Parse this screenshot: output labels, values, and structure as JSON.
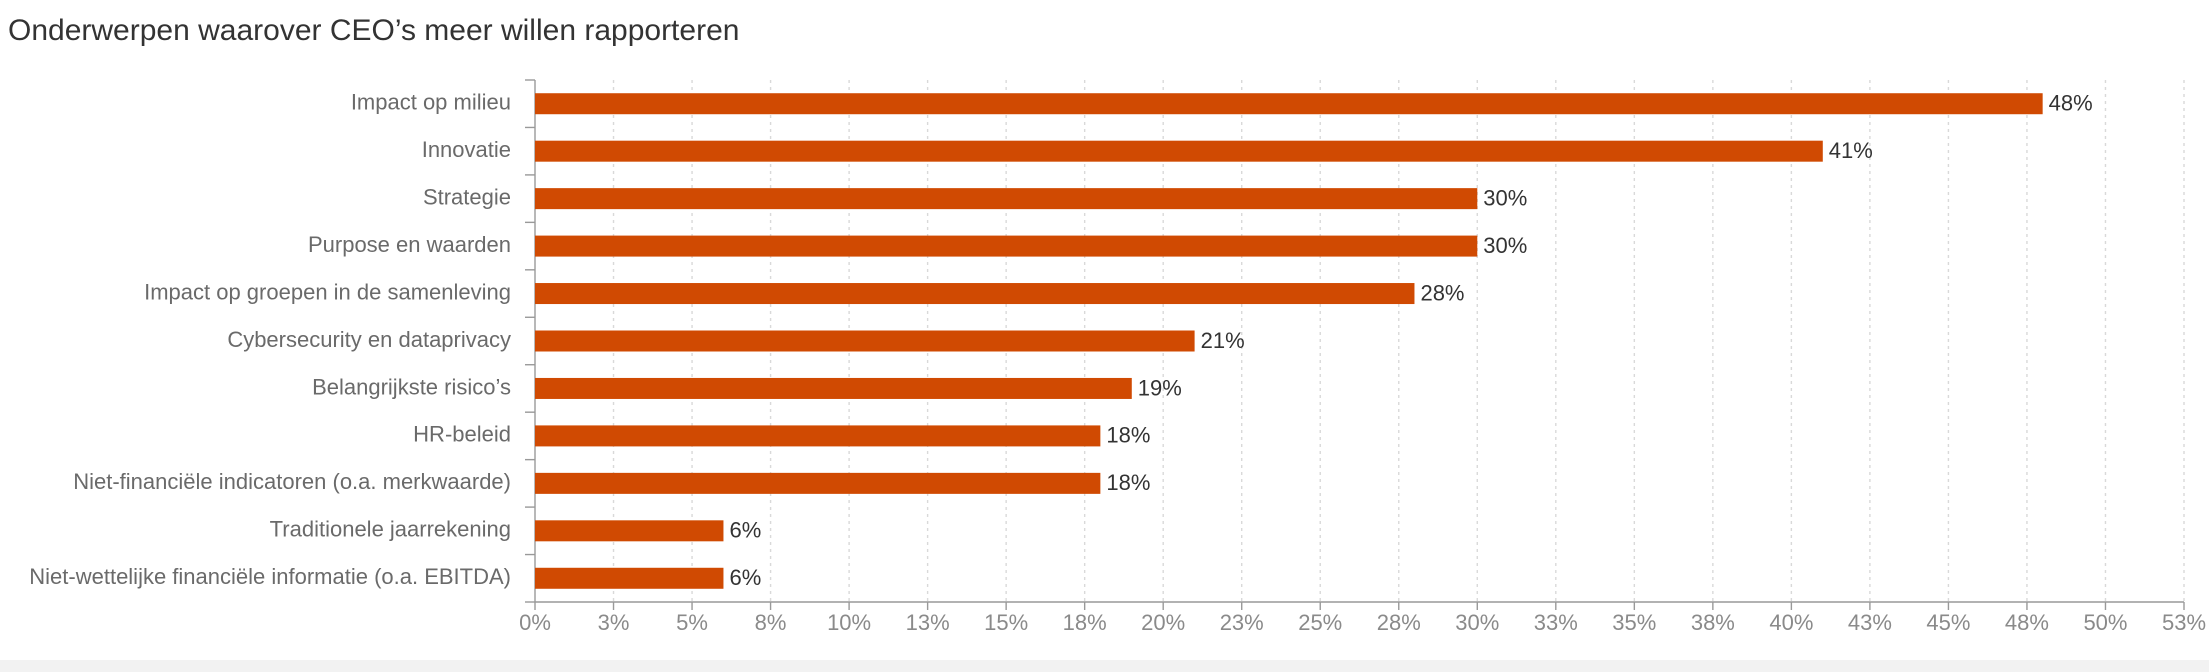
{
  "chart_data": {
    "type": "bar",
    "orientation": "horizontal",
    "title": "Onderwerpen waarover CEO’s meer willen rapporteren",
    "categories": [
      "Impact op milieu",
      "Innovatie",
      "Strategie",
      "Purpose en waarden",
      "Impact op groepen in de samenleving",
      "Cybersecurity en dataprivacy",
      "Belangrijkste risico’s",
      "HR-beleid",
      "Niet-financiële indicatoren (o.a. merkwaarde)",
      "Traditionele jaarrekening",
      "Niet-wettelijke financiële informatie (o.a. EBITDA)"
    ],
    "values": [
      48,
      41,
      30,
      30,
      28,
      21,
      19,
      18,
      18,
      6,
      6
    ],
    "value_labels": [
      "48%",
      "41%",
      "30%",
      "30%",
      "28%",
      "21%",
      "19%",
      "18%",
      "18%",
      "6%",
      "6%"
    ],
    "color": "#d04a02",
    "xlim": [
      0,
      52.5
    ],
    "xticks": [
      {
        "value": 0,
        "label": "0%"
      },
      {
        "value": 2.5,
        "label": "3%"
      },
      {
        "value": 5,
        "label": "5%"
      },
      {
        "value": 7.5,
        "label": "8%"
      },
      {
        "value": 10,
        "label": "10%"
      },
      {
        "value": 12.5,
        "label": "13%"
      },
      {
        "value": 15,
        "label": "15%"
      },
      {
        "value": 17.5,
        "label": "18%"
      },
      {
        "value": 20,
        "label": "20%"
      },
      {
        "value": 22.5,
        "label": "23%"
      },
      {
        "value": 25,
        "label": "25%"
      },
      {
        "value": 27.5,
        "label": "28%"
      },
      {
        "value": 30,
        "label": "30%"
      },
      {
        "value": 32.5,
        "label": "33%"
      },
      {
        "value": 35,
        "label": "35%"
      },
      {
        "value": 37.5,
        "label": "38%"
      },
      {
        "value": 40,
        "label": "40%"
      },
      {
        "value": 42.5,
        "label": "43%"
      },
      {
        "value": 45,
        "label": "45%"
      },
      {
        "value": 47.5,
        "label": "48%"
      },
      {
        "value": 50,
        "label": "50%"
      },
      {
        "value": 52.5,
        "label": "53%"
      }
    ],
    "grid": true
  }
}
